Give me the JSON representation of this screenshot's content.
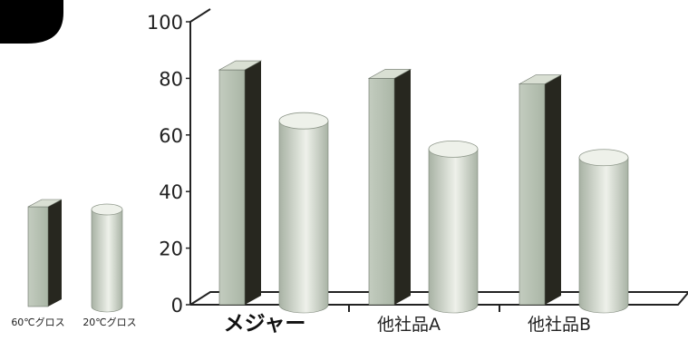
{
  "chart_data": {
    "type": "bar",
    "categories": [
      "メジャー",
      "他社品A",
      "他社品B"
    ],
    "series": [
      {
        "name": "60℃グロス",
        "values": [
          83,
          80,
          78
        ]
      },
      {
        "name": "20℃グロス",
        "values": [
          65,
          55,
          52
        ]
      }
    ],
    "ylim": [
      0,
      100
    ],
    "yticks": [
      0,
      20,
      40,
      60,
      80,
      100
    ],
    "legend_position": "left",
    "grid": false,
    "colors": {
      "bar_front": "#b4bfb0",
      "bar_side": "#27271f",
      "bar_top": "#d9dfd3",
      "cylinder_dark": "#a8b2a4",
      "cylinder_light": "#eef1ea",
      "axis": "#222222",
      "badge": "#000000"
    }
  }
}
